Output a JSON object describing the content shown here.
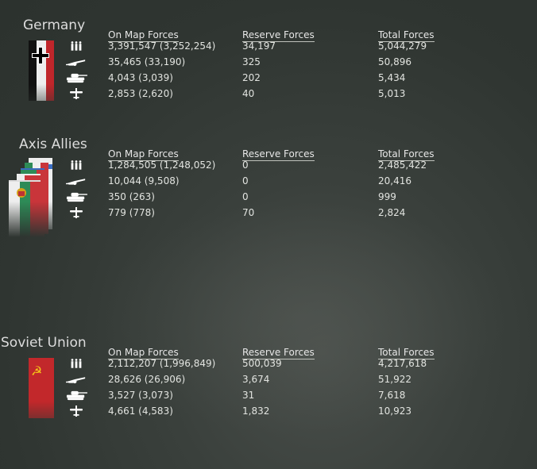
{
  "headers": {
    "on_map": "On Map Forces",
    "reserve": "Reserve Forces",
    "total": "Total Forces"
  },
  "row_icons": [
    "infantry-icon",
    "artillery-icon",
    "tank-icon",
    "aircraft-icon"
  ],
  "factions": [
    {
      "name": "Germany",
      "flag": "german-flag-icon",
      "rows": [
        {
          "on_map": "3,391,547 (3,252,254)",
          "reserve": "34,197",
          "total": "5,044,279"
        },
        {
          "on_map": "35,465 (33,190)",
          "reserve": "325",
          "total": "50,896"
        },
        {
          "on_map": "4,043 (3,039)",
          "reserve": "202",
          "total": "5,434"
        },
        {
          "on_map": "2,853 (2,620)",
          "reserve": "40",
          "total": "5,013"
        }
      ]
    },
    {
      "name": "Axis Allies",
      "flag": "axis-allies-flags-icon",
      "rows": [
        {
          "on_map": "1,284,505 (1,248,052)",
          "reserve": "0",
          "total": "2,485,422"
        },
        {
          "on_map": "10,044 (9,508)",
          "reserve": "0",
          "total": "20,416"
        },
        {
          "on_map": "350 (263)",
          "reserve": "0",
          "total": "999"
        },
        {
          "on_map": "779 (778)",
          "reserve": "70",
          "total": "2,824"
        }
      ]
    },
    {
      "name": "Soviet Union",
      "flag": "soviet-flag-icon",
      "rows": [
        {
          "on_map": "2,112,207 (1,996,849)",
          "reserve": "500,039",
          "total": "4,217,618"
        },
        {
          "on_map": "28,626 (26,906)",
          "reserve": "3,674",
          "total": "51,922"
        },
        {
          "on_map": "3,527 (3,073)",
          "reserve": "31",
          "total": "7,618"
        },
        {
          "on_map": "4,661 (4,583)",
          "reserve": "1,832",
          "total": "10,923"
        }
      ]
    }
  ]
}
